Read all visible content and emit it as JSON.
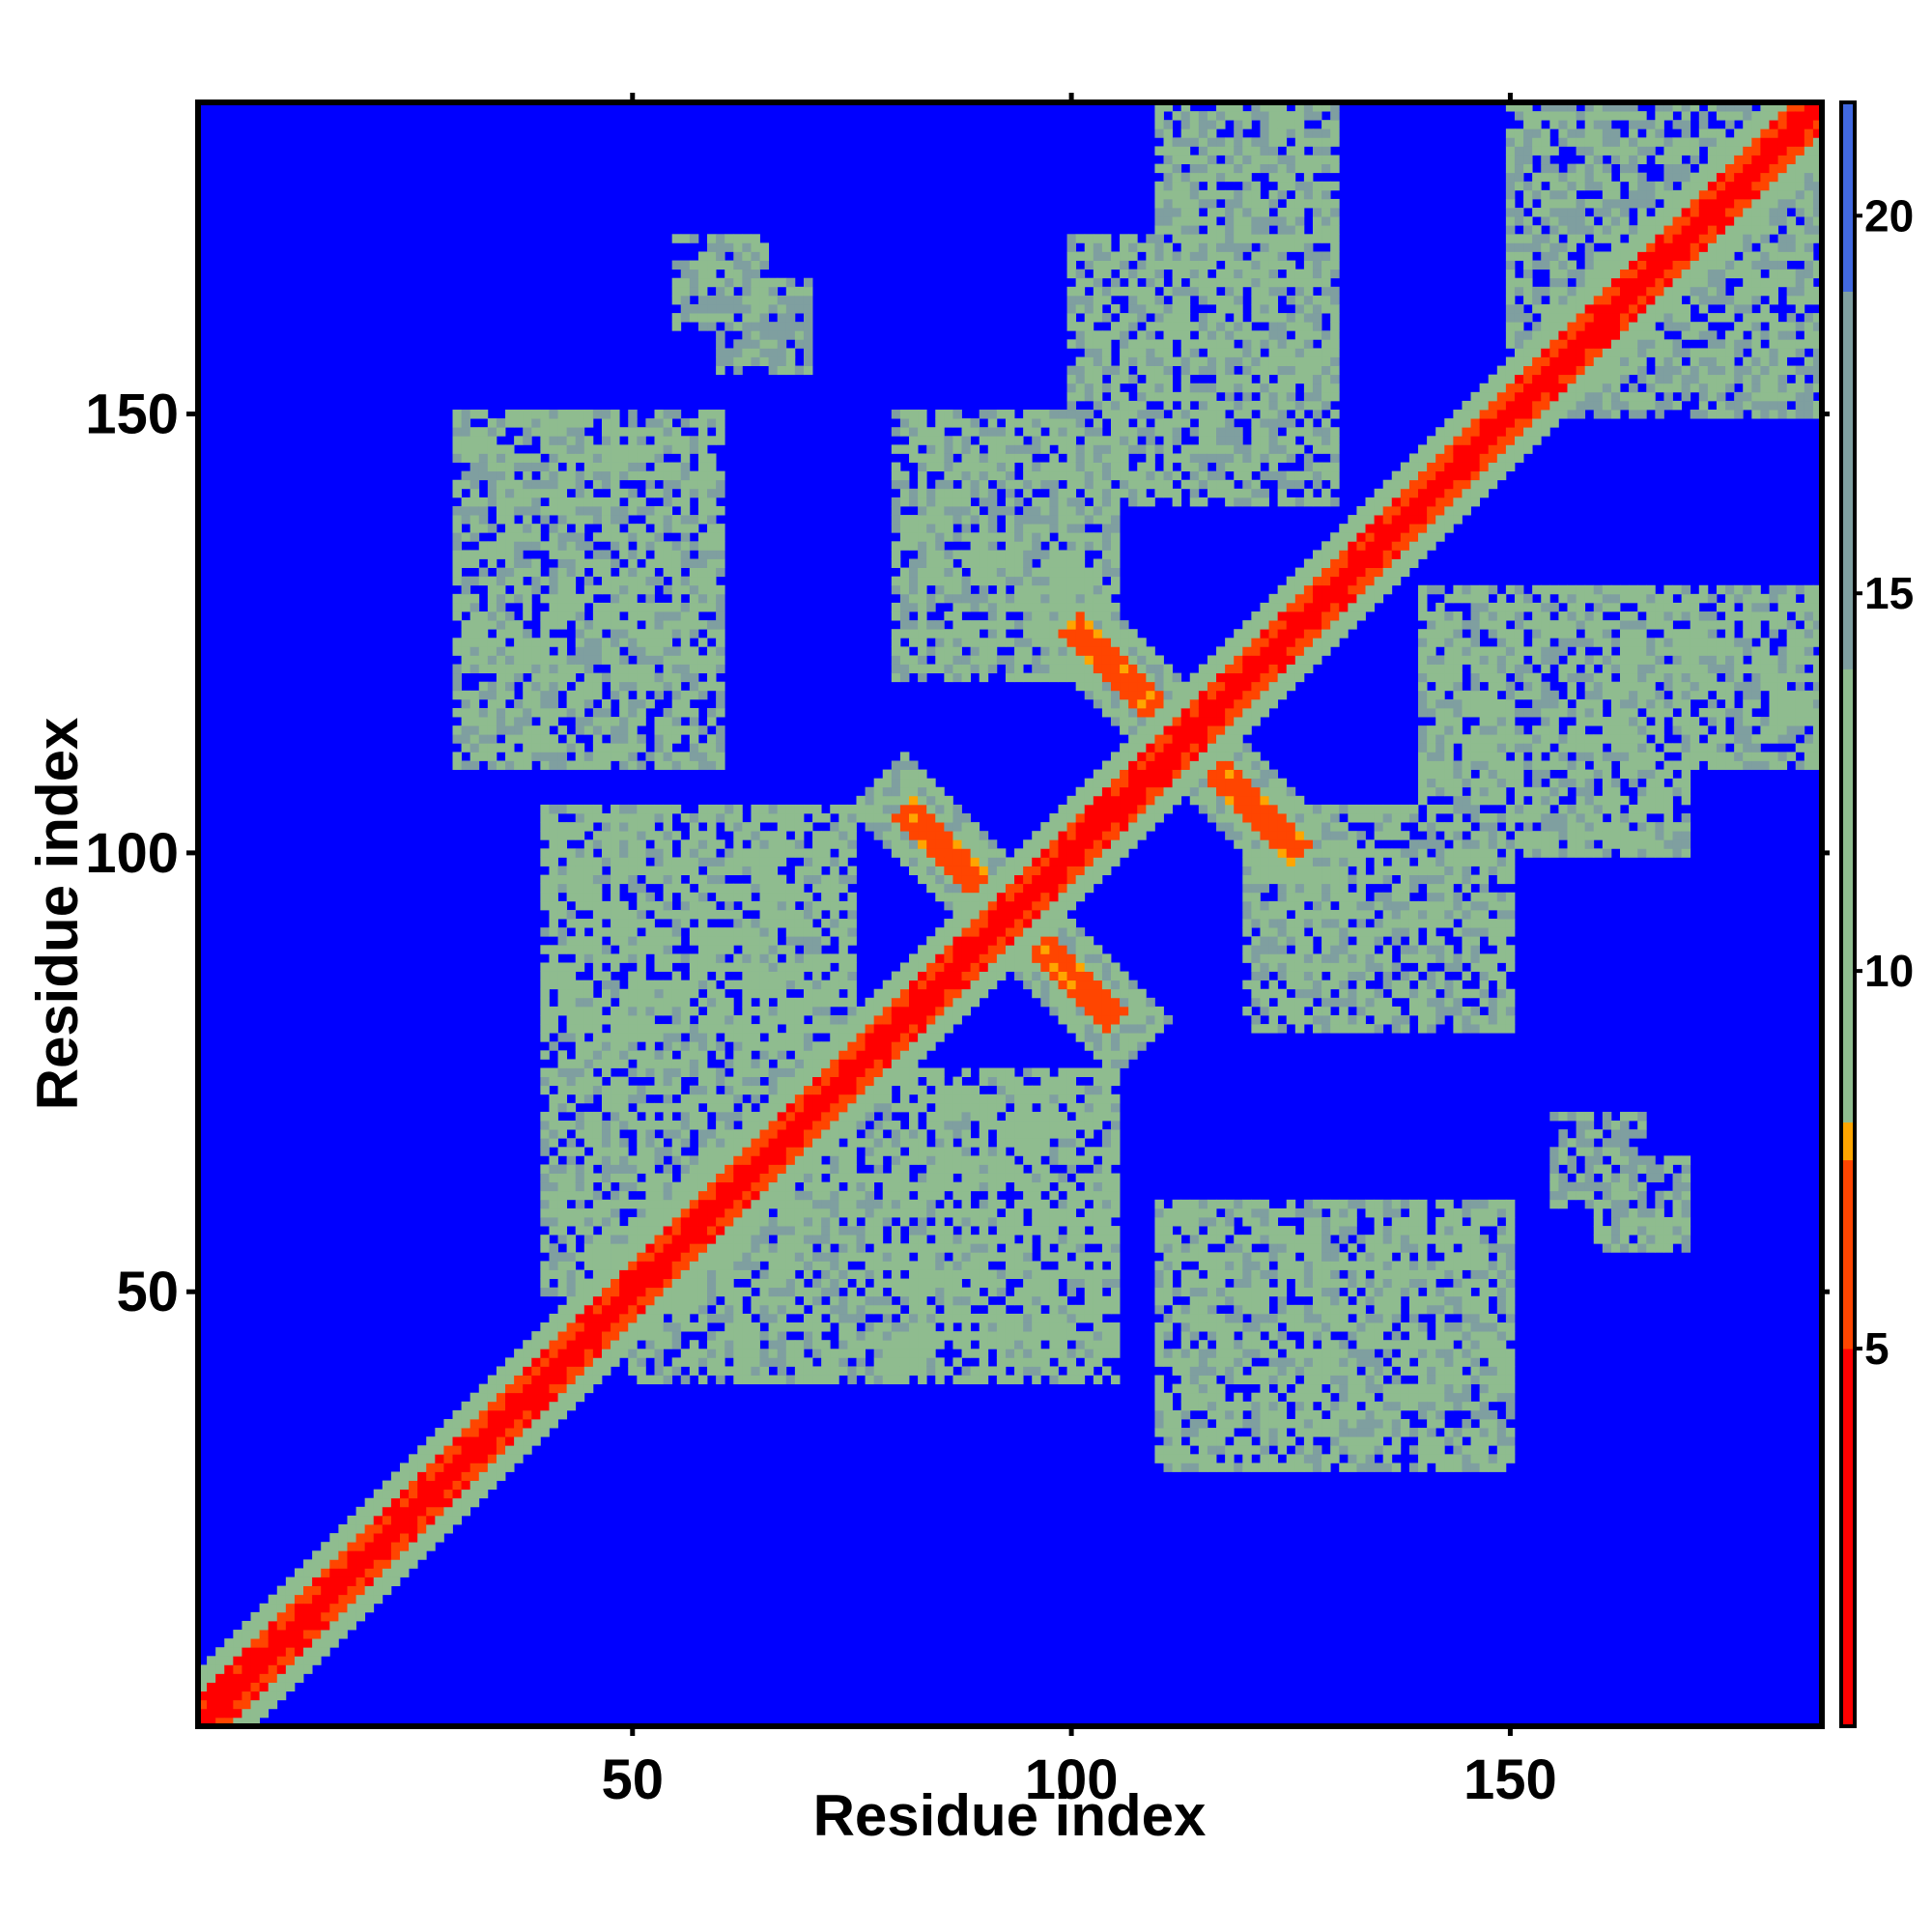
{
  "chart_data": {
    "type": "heatmap",
    "xlabel": "Residue index",
    "ylabel": "Residue index",
    "n_residues": 185,
    "xlim": [
      1,
      185
    ],
    "ylim": [
      1,
      185
    ],
    "x_ticks": [
      50,
      100,
      150
    ],
    "y_ticks": [
      50,
      100,
      150
    ],
    "colorbar": {
      "range": [
        0,
        21.5
      ],
      "ticks": [
        5,
        10,
        15,
        20
      ],
      "stops": [
        {
          "value": 0,
          "color": "#ff0000"
        },
        {
          "value": 5,
          "color": "#ff4500"
        },
        {
          "value": 7.5,
          "color": "#ffa500"
        },
        {
          "value": 8,
          "color": "#8fbc8f"
        },
        {
          "value": 14,
          "color": "#7f9fa0"
        },
        {
          "value": 19,
          "color": "#4169e1"
        },
        {
          "value": 21.5,
          "color": "#0000ff"
        }
      ]
    },
    "colors": {
      "diagonal": "#ff0000",
      "close_contact": "#ffa500",
      "medium_contact": "#8fbc8f",
      "far_contact": "#7f9fa0",
      "background": "#0000ff"
    },
    "description_regions": [
      {
        "kind": "diagonal",
        "from": 1,
        "to": 185,
        "value": 0
      },
      {
        "kind": "anti_diagonal",
        "center": [
          93,
          93
        ],
        "half_length": 12,
        "value": 5
      },
      {
        "kind": "anti_diagonal",
        "center": [
          113,
          113
        ],
        "half_length": 13,
        "value": 5
      },
      {
        "kind": "block",
        "x": [
          30,
          60
        ],
        "y": [
          110,
          150
        ],
        "value": 11
      },
      {
        "kind": "block",
        "x": [
          40,
          75
        ],
        "y": [
          80,
          105
        ],
        "value": 10
      },
      {
        "kind": "block",
        "x": [
          40,
          75
        ],
        "y": [
          50,
          80
        ],
        "value": 11
      },
      {
        "kind": "block",
        "x": [
          85,
          105
        ],
        "y": [
          45,
          70
        ],
        "value": 11
      },
      {
        "kind": "block",
        "x": [
          115,
          140
        ],
        "y": [
          35,
          60
        ],
        "value": 12
      },
      {
        "kind": "block",
        "x": [
          120,
          150
        ],
        "y": [
          80,
          105
        ],
        "value": 11
      },
      {
        "kind": "block",
        "x": [
          140,
          185
        ],
        "y": [
          110,
          130
        ],
        "value": 11
      },
      {
        "kind": "block",
        "x": [
          100,
          130
        ],
        "y": [
          140,
          170
        ],
        "value": 11
      },
      {
        "kind": "block",
        "x": [
          55,
          65
        ],
        "y": [
          160,
          170
        ],
        "value": 12
      },
      {
        "kind": "block",
        "x": [
          150,
          185
        ],
        "y": [
          150,
          185
        ],
        "value": 12
      },
      {
        "kind": "block",
        "x": [
          155,
          165
        ],
        "y": [
          60,
          70
        ],
        "value": 13
      }
    ]
  }
}
